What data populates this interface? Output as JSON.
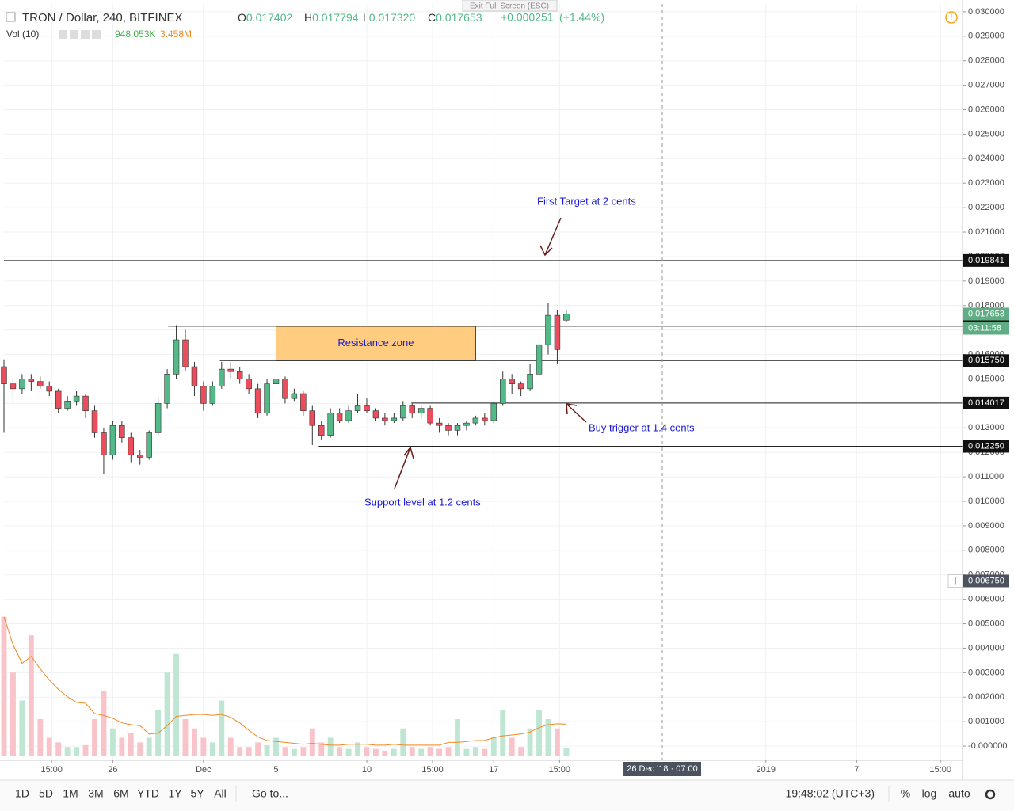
{
  "exit_full_screen": "Exit Full Screen (ESC)",
  "chart_data": {
    "type": "candlestick",
    "symbol": "TRON / Dollar, 240, BITFINEX",
    "legend_values": [
      {
        "key": "O",
        "value": 0.017402
      },
      {
        "key": "H",
        "value": 0.017794
      },
      {
        "key": "L",
        "value": 0.01732,
        "label": "0.017320"
      },
      {
        "key": "C",
        "value": 0.017653
      }
    ],
    "change": {
      "value": 0.000251,
      "label": "+0.000251"
    },
    "change_pct": {
      "value": 1.44,
      "label": "(+1.44%)"
    },
    "volume_legend": {
      "title": "Vol (10)",
      "volume": 948053,
      "volume_label": "948.053K",
      "ma": 3458000,
      "ma_label": "3.458M",
      "volume_color": "#4caf50",
      "ma_color": "#f08a24"
    },
    "up_color": "#53b987",
    "down_color": "#eb4d5c",
    "volume_up_color": "#bfe5d3",
    "volume_down_color": "#f8c4c9",
    "x": [
      20,
      20.5,
      21,
      21.5,
      22,
      22.5,
      23,
      23.5,
      24,
      24.5,
      25,
      25.5,
      26,
      26.5,
      27,
      27.5,
      28,
      28.5,
      29,
      29.5,
      30,
      30.5,
      31,
      31.5,
      32,
      32.5,
      33,
      33.5,
      34,
      34.5,
      35,
      35.5,
      36,
      36.5,
      37,
      37.5,
      38,
      38.5,
      39,
      39.5,
      40,
      40.5,
      41,
      41.5,
      42,
      42.5,
      43,
      43.5,
      44,
      44.5,
      45,
      45.5,
      46,
      46.5,
      47,
      47.5,
      48,
      48.5,
      49,
      49.5,
      50,
      50.5,
      51
    ],
    "open": [
      0.0155,
      0.0148,
      0.0146,
      0.015,
      0.0149,
      0.0147,
      0.0145,
      0.0138,
      0.0141,
      0.0143,
      0.0137,
      0.0128,
      0.0119,
      0.0131,
      0.0126,
      0.0119,
      0.0118,
      0.0128,
      0.014,
      0.0152,
      0.0166,
      0.0155,
      0.0147,
      0.014,
      0.0147,
      0.0154,
      0.0153,
      0.015,
      0.0146,
      0.0136,
      0.0148,
      0.015,
      0.0142,
      0.0144,
      0.0137,
      0.0131,
      0.0127,
      0.0136,
      0.0133,
      0.0137,
      0.0139,
      0.0137,
      0.0134,
      0.0133,
      0.0134,
      0.0139,
      0.0136,
      0.0138,
      0.0132,
      0.0131,
      0.0129,
      0.0131,
      0.0132,
      0.0134,
      0.0133,
      0.014,
      0.015,
      0.0148,
      0.0146,
      0.0152,
      0.0164,
      0.0176,
      0.017402
    ],
    "high": [
      0.0158,
      0.0151,
      0.0152,
      0.0152,
      0.0151,
      0.0149,
      0.0146,
      0.0143,
      0.0145,
      0.0144,
      0.0139,
      0.013,
      0.0133,
      0.0133,
      0.0128,
      0.0121,
      0.0129,
      0.0142,
      0.0154,
      0.0172,
      0.017,
      0.0157,
      0.0149,
      0.0149,
      0.0157,
      0.0157,
      0.0155,
      0.0152,
      0.0148,
      0.015,
      0.0157,
      0.0151,
      0.0146,
      0.0145,
      0.0139,
      0.0133,
      0.0138,
      0.0138,
      0.0139,
      0.0144,
      0.0142,
      0.0138,
      0.0136,
      0.0136,
      0.0141,
      0.014,
      0.0139,
      0.0139,
      0.0134,
      0.0132,
      0.0132,
      0.0133,
      0.0135,
      0.0136,
      0.0141,
      0.0153,
      0.0152,
      0.0149,
      0.0156,
      0.0166,
      0.0181,
      0.0178,
      0.017794
    ],
    "low": [
      0.0128,
      0.014,
      0.0144,
      0.0145,
      0.0146,
      0.0143,
      0.0136,
      0.0137,
      0.0139,
      0.0134,
      0.0126,
      0.0111,
      0.0117,
      0.0124,
      0.0116,
      0.0115,
      0.0117,
      0.0127,
      0.0138,
      0.015,
      0.0153,
      0.0143,
      0.0137,
      0.0139,
      0.0146,
      0.015,
      0.0148,
      0.0144,
      0.0134,
      0.0135,
      0.0146,
      0.014,
      0.0141,
      0.0135,
      0.0123,
      0.0125,
      0.0126,
      0.0132,
      0.0132,
      0.0136,
      0.0136,
      0.0133,
      0.0131,
      0.0132,
      0.0133,
      0.0134,
      0.0134,
      0.0131,
      0.0128,
      0.0127,
      0.0127,
      0.0129,
      0.0131,
      0.0131,
      0.0132,
      0.0139,
      0.0144,
      0.0143,
      0.0145,
      0.0151,
      0.016,
      0.0156,
      0.01732
    ],
    "close": [
      0.0148,
      0.0146,
      0.015,
      0.0149,
      0.0147,
      0.0145,
      0.0138,
      0.0141,
      0.0143,
      0.0137,
      0.0128,
      0.0119,
      0.0131,
      0.0126,
      0.0119,
      0.0118,
      0.0128,
      0.014,
      0.0152,
      0.0166,
      0.0155,
      0.0147,
      0.014,
      0.0147,
      0.0154,
      0.0153,
      0.015,
      0.0146,
      0.0136,
      0.0148,
      0.015,
      0.0142,
      0.0144,
      0.0137,
      0.0131,
      0.0127,
      0.0136,
      0.0133,
      0.0137,
      0.0139,
      0.0137,
      0.0134,
      0.0133,
      0.0134,
      0.0139,
      0.0136,
      0.0138,
      0.0132,
      0.0131,
      0.0129,
      0.0131,
      0.0132,
      0.0134,
      0.0133,
      0.014,
      0.015,
      0.0148,
      0.0146,
      0.0152,
      0.0164,
      0.0176,
      0.0162,
      0.017653
    ],
    "volume": [
      15000000,
      9000000,
      6000000,
      13000000,
      4000000,
      2000000,
      1500000,
      1000000,
      1000000,
      1200000,
      4000000,
      7000000,
      3000000,
      2000000,
      2500000,
      1500000,
      2000000,
      5000000,
      9000000,
      11000000,
      4000000,
      3000000,
      2000000,
      1500000,
      6000000,
      2000000,
      1000000,
      1000000,
      1500000,
      1200000,
      2000000,
      1000000,
      800000,
      1000000,
      3000000,
      1500000,
      2000000,
      1000000,
      800000,
      1500000,
      1000000,
      800000,
      600000,
      800000,
      3000000,
      1000000,
      800000,
      1000000,
      800000,
      1000000,
      4000000,
      800000,
      1000000,
      800000,
      2000000,
      5000000,
      2000000,
      1000000,
      3000000,
      5000000,
      4000000,
      3000000,
      948053
    ],
    "volume_ma": [
      15000000,
      12000000,
      10000000,
      10750000,
      9400000,
      8200000,
      7200000,
      6400000,
      5800000,
      5700000,
      4600000,
      4400000,
      4100000,
      3600000,
      3400000,
      3300000,
      2400000,
      2500000,
      3300000,
      4300000,
      4400000,
      4500000,
      4500000,
      4400000,
      4500000,
      4200000,
      3600000,
      2800000,
      2100000,
      1700000,
      1600000,
      1500000,
      1400000,
      1300000,
      1400000,
      1300000,
      1200000,
      1200000,
      1300000,
      1300000,
      1300000,
      1200000,
      1200000,
      1300000,
      1200000,
      1200000,
      1200000,
      1200000,
      1200000,
      1500000,
      1500000,
      1600000,
      1700000,
      1700000,
      2000000,
      2200000,
      2300000,
      2400000,
      2600000,
      3100000,
      3400000,
      3500000,
      3458000
    ],
    "volume_lim": [
      0,
      20000000
    ],
    "xlim": [
      20,
      72.84
    ],
    "xticks": [
      {
        "value": 22.625,
        "label": "15:00"
      },
      {
        "value": 26,
        "label": "26"
      },
      {
        "value": 31,
        "label": "Dec"
      },
      {
        "value": 35,
        "label": "5"
      },
      {
        "value": 40,
        "label": "10"
      },
      {
        "value": 43.625,
        "label": "15:00"
      },
      {
        "value": 47,
        "label": "17"
      },
      {
        "value": 50.625,
        "label": "15:00"
      },
      {
        "value": 62,
        "label": "2019"
      },
      {
        "value": 67,
        "label": "7"
      },
      {
        "value": 71.625,
        "label": "15:00"
      }
    ],
    "ylim": [
      -0.00058,
      0.03032
    ],
    "yticks": [
      {
        "value": 0.03,
        "label": "0.030000"
      },
      {
        "value": 0.029,
        "label": "0.029000"
      },
      {
        "value": 0.028,
        "label": "0.028000"
      },
      {
        "value": 0.027,
        "label": "0.027000"
      },
      {
        "value": 0.026,
        "label": "0.026000"
      },
      {
        "value": 0.025,
        "label": "0.025000"
      },
      {
        "value": 0.024,
        "label": "0.024000"
      },
      {
        "value": 0.023,
        "label": "0.023000"
      },
      {
        "value": 0.022,
        "label": "0.022000"
      },
      {
        "value": 0.021,
        "label": "0.021000"
      },
      {
        "value": 0.02,
        "label": "0.020000"
      },
      {
        "value": 0.019,
        "label": "0.019000"
      },
      {
        "value": 0.018,
        "label": "0.018000"
      },
      {
        "value": 0.017,
        "label": "0.017000"
      },
      {
        "value": 0.016,
        "label": "0.016000"
      },
      {
        "value": 0.015,
        "label": "0.015000"
      },
      {
        "value": 0.014,
        "label": "0.014000"
      },
      {
        "value": 0.013,
        "label": "0.013000"
      },
      {
        "value": 0.012,
        "label": "0.012000"
      },
      {
        "value": 0.011,
        "label": "0.011000"
      },
      {
        "value": 0.01,
        "label": "0.010000"
      },
      {
        "value": 0.009,
        "label": "0.009000"
      },
      {
        "value": 0.008,
        "label": "0.008000"
      },
      {
        "value": 0.007,
        "label": "0.007000"
      },
      {
        "value": 0.006,
        "label": "0.006000"
      },
      {
        "value": 0.005,
        "label": "0.005000"
      },
      {
        "value": 0.004,
        "label": "0.004000"
      },
      {
        "value": 0.003,
        "label": "0.003000"
      },
      {
        "value": 0.002,
        "label": "0.002000"
      },
      {
        "value": 0.001,
        "label": "0.001000"
      },
      {
        "value": 0,
        "label": "-0.000000"
      }
    ],
    "grid": true,
    "levels": [
      {
        "value": 0.019841,
        "from": 20
      },
      {
        "value": 0.017154,
        "from": 29.06
      },
      {
        "value": 0.01575,
        "label": "0.015750",
        "from": 31.9
      },
      {
        "value": 0.014017,
        "from": 42.46
      },
      {
        "value": 0.01225,
        "label": "0.012250",
        "from": 37.35
      }
    ],
    "last_price": {
      "value": 0.017653,
      "countdown": "03:11:58",
      "color": "#5fad84"
    },
    "crosshair": {
      "x": 56.29,
      "x_label": "26 Dec '18 · 07:00",
      "y": 0.00675,
      "y_label": "0.006750"
    },
    "zone": {
      "label": "Resistance zone",
      "from": 35,
      "to": 46,
      "low": 0.01575,
      "high": 0.017154,
      "color": "#ffcc80"
    },
    "annotations": [
      "First Target at 2 cents",
      "Buy trigger at 1.4 cents",
      "Support level at 1.2 cents"
    ]
  },
  "toolbar": {
    "ranges": [
      "1D",
      "5D",
      "1M",
      "3M",
      "6M",
      "YTD",
      "1Y",
      "5Y",
      "All"
    ],
    "goto": "Go to...",
    "clock": "19:48:02 (UTC+3)",
    "options": [
      "%",
      "log",
      "auto"
    ]
  }
}
